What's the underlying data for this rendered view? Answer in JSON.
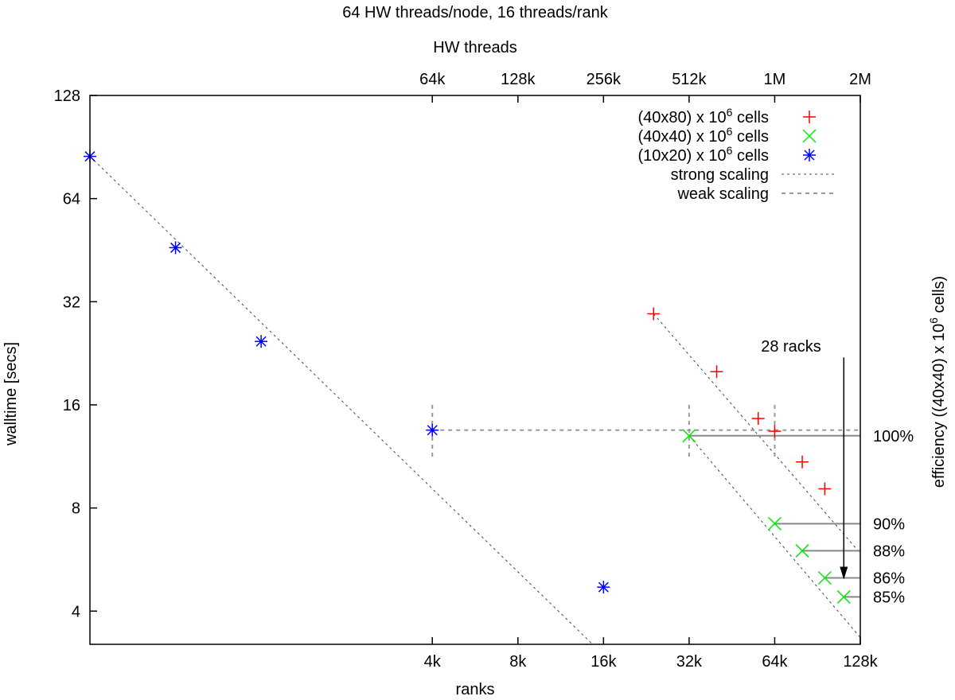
{
  "chart_data": {
    "type": "scatter",
    "title": "64 HW threads/node, 16 threads/rank",
    "xlabel": "ranks",
    "x2label": "HW threads",
    "ylabel": "walltime [secs]",
    "y2label": "efficiency ((40x40) x 10^6 cells)",
    "x_scale": "log2",
    "y_scale": "log2",
    "xlim": [
      256,
      131072
    ],
    "ylim": [
      3.2,
      128
    ],
    "x_ticks": [
      {
        "value": 4096,
        "label": "4k"
      },
      {
        "value": 8192,
        "label": "8k"
      },
      {
        "value": 16384,
        "label": "16k"
      },
      {
        "value": 32768,
        "label": "32k"
      },
      {
        "value": 65536,
        "label": "64k"
      },
      {
        "value": 131072,
        "label": "128k"
      }
    ],
    "x2_ticks": [
      {
        "value": 65536,
        "label": "64k"
      },
      {
        "value": 131072,
        "label": "128k"
      },
      {
        "value": 262144,
        "label": "256k"
      },
      {
        "value": 524288,
        "label": "512k"
      },
      {
        "value": 1048576,
        "label": "1M"
      },
      {
        "value": 2097152,
        "label": "2M"
      }
    ],
    "y_ticks": [
      {
        "value": 4,
        "label": "4"
      },
      {
        "value": 8,
        "label": "8"
      },
      {
        "value": 16,
        "label": "16"
      },
      {
        "value": 32,
        "label": "32"
      },
      {
        "value": 64,
        "label": "64"
      },
      {
        "value": 128,
        "label": "128"
      }
    ],
    "series": [
      {
        "name_pre": "(40x80) x 10",
        "name_sup": "6",
        "name_post": " cells",
        "marker": "plus",
        "color": "#ff0000",
        "points": [
          {
            "x": 24576,
            "y": 29.5
          },
          {
            "x": 40960,
            "y": 20.0
          },
          {
            "x": 57344,
            "y": 14.6
          },
          {
            "x": 65536,
            "y": 13.4
          },
          {
            "x": 81920,
            "y": 10.9
          },
          {
            "x": 98304,
            "y": 9.1
          }
        ]
      },
      {
        "name_pre": "(40x40) x 10",
        "name_sup": "6",
        "name_post": " cells",
        "marker": "cross",
        "color": "#00ee00",
        "points": [
          {
            "x": 32768,
            "y": 13.0
          },
          {
            "x": 65536,
            "y": 7.2
          },
          {
            "x": 81920,
            "y": 6.0
          },
          {
            "x": 98304,
            "y": 5.0
          },
          {
            "x": 114688,
            "y": 4.4
          }
        ]
      },
      {
        "name_pre": "(10x20) x 10",
        "name_sup": "6",
        "name_post": " cells",
        "marker": "star",
        "color": "#0000ff",
        "points": [
          {
            "x": 256,
            "y": 85.0
          },
          {
            "x": 512,
            "y": 46.0
          },
          {
            "x": 1024,
            "y": 24.5
          },
          {
            "x": 4096,
            "y": 13.5
          },
          {
            "x": 16384,
            "y": 4.7
          }
        ]
      }
    ],
    "strong_scaling": {
      "name": "strong scaling",
      "lines": [
        {
          "from": {
            "x": 256,
            "y": 85.0
          },
          "to": {
            "x": 15000,
            "y": 3.2
          }
        },
        {
          "from": {
            "x": 24576,
            "y": 29.5
          },
          "to": {
            "x": 131072,
            "y": 5.9
          }
        },
        {
          "from": {
            "x": 32768,
            "y": 13.0
          },
          "to": {
            "x": 131072,
            "y": 3.35
          }
        }
      ]
    },
    "weak_scaling": {
      "name": "weak scaling",
      "y": 13.5,
      "x_from": 4096,
      "x_to": 131072,
      "markers": [
        {
          "x": 4096,
          "y_low": 11.0,
          "y_high": 16.0
        },
        {
          "x": 32768,
          "y_low": 11.0,
          "y_high": 16.0
        },
        {
          "x": 65536,
          "y_low": 11.0,
          "y_high": 16.0
        }
      ]
    },
    "efficiency": [
      {
        "label": "100%",
        "from_x": 32768,
        "y": 13.0
      },
      {
        "label": "90%",
        "from_x": 65536,
        "y": 7.2
      },
      {
        "label": "88%",
        "from_x": 81920,
        "y": 6.0
      },
      {
        "label": "86%",
        "from_x": 98304,
        "y": 5.0
      },
      {
        "label": "85%",
        "from_x": 114688,
        "y": 4.4
      }
    ],
    "annotation": {
      "text": "28 racks",
      "x": 114688,
      "y_from": 22.0,
      "y_to": 5.0
    },
    "legend_position": "top-right",
    "grid": false
  }
}
